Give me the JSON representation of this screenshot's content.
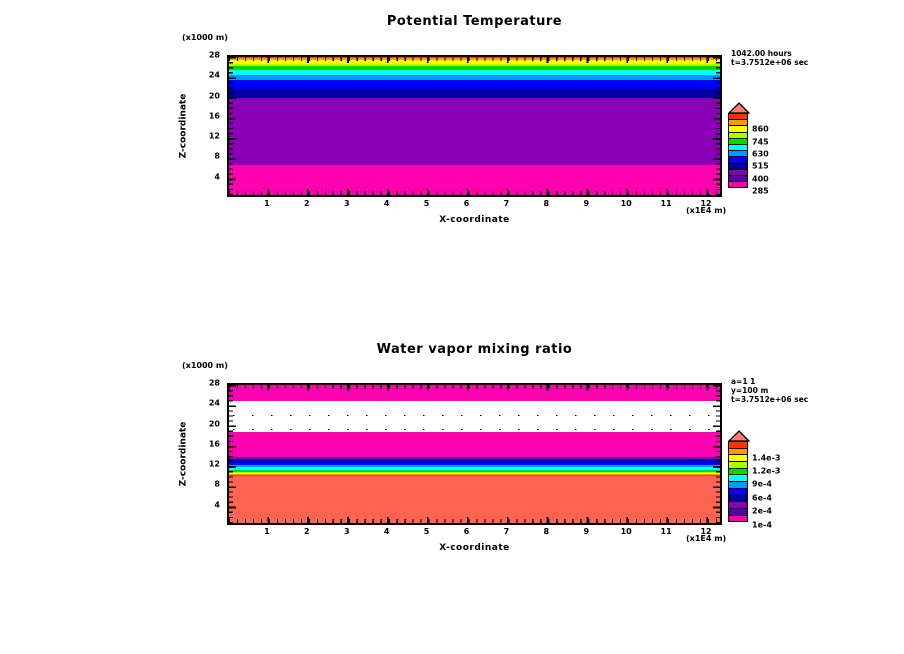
{
  "figure": {
    "background": "#ffffff",
    "shared": {
      "x_axis_label": "X-coordinate",
      "x_unit_label": "(x1E4 m)",
      "y_axis_label": "Z-coordinate",
      "y_unit_label": "(x1000 m)",
      "x_ticks": [
        "1",
        "2",
        "3",
        "4",
        "5",
        "6",
        "7",
        "8",
        "9",
        "10",
        "11",
        "12"
      ],
      "y_ticks": [
        "28",
        "24",
        "20",
        "16",
        "12",
        "8",
        "4"
      ],
      "x_range": [
        0,
        12.4
      ],
      "z_range_km": [
        0,
        28
      ]
    },
    "panels": [
      {
        "id": "potential-temperature",
        "title": "Potential Temperature",
        "annotation_lines": [
          "1042.00 hours",
          "t=3.7512e+06 sec"
        ],
        "colorbar": {
          "cap_color": "#FF7A6E",
          "colors": [
            "#FF3300",
            "#FF9900",
            "#FFFF00",
            "#AAFF00",
            "#00DC00",
            "#00FFFF",
            "#0099FF",
            "#0000FF",
            "#0000A0",
            "#8A00B4",
            "#5A00A8",
            "#FF00B0"
          ],
          "labels": [
            "860",
            "745",
            "630",
            "515",
            "400",
            "285"
          ]
        },
        "bands": [
          {
            "color": "#FF3300",
            "height_pct": 0.7
          },
          {
            "color": "#FF9900",
            "height_pct": 1.76
          },
          {
            "color": "#FFFF00",
            "height_pct": 2.54
          },
          {
            "color": "#AAFF00",
            "height_pct": 1.76
          },
          {
            "color": "#00DC00",
            "height_pct": 2.54
          },
          {
            "color": "#00FFFF",
            "height_pct": 3.59
          },
          {
            "color": "#0099FF",
            "height_pct": 3.52
          },
          {
            "color": "#0000FF",
            "height_pct": 6.48
          },
          {
            "color": "#0000A0",
            "height_pct": 7.11
          },
          {
            "color": "#8A00B4",
            "height_pct": 48.59
          },
          {
            "color": "#FF00B0",
            "height_pct": 21.41
          }
        ],
        "dotted_lines_pct": []
      },
      {
        "id": "water-vapor-mixing-ratio",
        "title": "Water vapor mixing ratio",
        "annotation_lines": [
          "a=1 1",
          "y=100 m",
          "t=3.7512e+06 sec"
        ],
        "colorbar": {
          "cap_color": "#FF7A6E",
          "colors": [
            "#FF3300",
            "#FF9900",
            "#FFFF00",
            "#AAFF00",
            "#00DC00",
            "#00FFFF",
            "#0099FF",
            "#0000FF",
            "#0000A0",
            "#8A00B4",
            "#5A00A8",
            "#FF00B0"
          ],
          "labels": [
            "1.4e-3",
            "1.2e-3",
            "9e-4",
            "6e-4",
            "2e-4",
            "1e-4"
          ]
        },
        "bands": [
          {
            "color": "#FF00B0",
            "height_pct": 11.76
          },
          {
            "color": "#FFFFFF",
            "height_pct": 22.04
          },
          {
            "color": "#FF00B0",
            "height_pct": 18.31
          },
          {
            "color": "#8A00B4",
            "height_pct": 1.83
          },
          {
            "color": "#0000A0",
            "height_pct": 1.76
          },
          {
            "color": "#0000FF",
            "height_pct": 2.18
          },
          {
            "color": "#0099FF",
            "height_pct": 1.76
          },
          {
            "color": "#00FFFF",
            "height_pct": 2.11
          },
          {
            "color": "#00DC00",
            "height_pct": 1.13
          },
          {
            "color": "#AAFF00",
            "height_pct": 0.7
          },
          {
            "color": "#FFFF00",
            "height_pct": 1.06
          },
          {
            "color": "#FF9900",
            "height_pct": 0.56
          },
          {
            "color": "#FF3300",
            "height_pct": 0.49
          },
          {
            "color": "#FF6352",
            "height_pct": 34.31
          }
        ],
        "dotted_lines_pct": [
          21.8,
          31.7
        ]
      }
    ]
  },
  "chart_data": [
    {
      "type": "heatmap",
      "title": "Potential Temperature",
      "xlabel": "X-coordinate",
      "x_units": "x1E4 m",
      "x_range": [
        0,
        12.4
      ],
      "ylabel": "Z-coordinate",
      "y_units": "x1000 m",
      "y_range": [
        0,
        28
      ],
      "time_annotation": [
        "1042.00 hours",
        "t=3.7512e+06 sec"
      ],
      "colorbar_tick_labels": [
        285,
        400,
        515,
        630,
        745,
        860
      ],
      "field_structure": "horizontally uniform layers",
      "layers_bottom_to_top": [
        {
          "z_km": [
            0,
            6.0
          ],
          "color": "#FF00B0",
          "approx_value": "285-400"
        },
        {
          "z_km": [
            6.0,
            19.6
          ],
          "color": "#8A00B4",
          "approx_value": "400-515"
        },
        {
          "z_km": [
            19.6,
            21.6
          ],
          "color": "#0000A0",
          "approx_value": "515"
        },
        {
          "z_km": [
            21.6,
            23.4
          ],
          "color": "#0000FF",
          "approx_value": "560"
        },
        {
          "z_km": [
            23.4,
            24.4
          ],
          "color": "#0099FF",
          "approx_value": "600"
        },
        {
          "z_km": [
            24.4,
            25.4
          ],
          "color": "#00FFFF",
          "approx_value": "630"
        },
        {
          "z_km": [
            25.4,
            26.1
          ],
          "color": "#00DC00",
          "approx_value": "680"
        },
        {
          "z_km": [
            26.1,
            26.6
          ],
          "color": "#AAFF00",
          "approx_value": "720"
        },
        {
          "z_km": [
            26.6,
            27.3
          ],
          "color": "#FFFF00",
          "approx_value": "760"
        },
        {
          "z_km": [
            27.3,
            27.8
          ],
          "color": "#FF9900",
          "approx_value": "810"
        },
        {
          "z_km": [
            27.8,
            28.0
          ],
          "color": "#FF3300",
          "approx_value": "860"
        }
      ],
      "legend_position": "right",
      "grid": false
    },
    {
      "type": "heatmap",
      "title": "Water vapor mixing ratio",
      "xlabel": "X-coordinate",
      "x_units": "x1E4 m",
      "x_range": [
        0,
        12.4
      ],
      "ylabel": "Z-coordinate",
      "y_units": "x1000 m",
      "y_range": [
        0,
        28
      ],
      "slice_annotation": [
        "a=1 1",
        "y=100 m",
        "t=3.7512e+06 sec"
      ],
      "colorbar_tick_labels": [
        "1e-4",
        "2e-4",
        "6e-4",
        "9e-4",
        "1.2e-3",
        "1.4e-3"
      ],
      "field_structure": "horizontally uniform layers",
      "layers_bottom_to_top": [
        {
          "z_km": [
            0,
            9.6
          ],
          "color": "#FF6352",
          "approx_value": ">1.4e-3"
        },
        {
          "z_km": [
            9.6,
            10.4
          ],
          "color": "#FFFF00",
          "approx_value": "1.2e-3"
        },
        {
          "z_km": [
            10.4,
            11.3
          ],
          "color": "#00FFFF",
          "approx_value": "9e-4"
        },
        {
          "z_km": [
            11.3,
            12.4
          ],
          "color": "#0000FF",
          "approx_value": "6e-4"
        },
        {
          "z_km": [
            12.4,
            13.4
          ],
          "color": "#8A00B4",
          "approx_value": "2e-4"
        },
        {
          "z_km": [
            13.4,
            18.9
          ],
          "color": "#FF00B0",
          "approx_value": "1e-4"
        },
        {
          "z_km": [
            18.9,
            24.7
          ],
          "color": "#FFFFFF",
          "approx_value": "<1e-4, two dotted contour lines"
        },
        {
          "z_km": [
            24.7,
            28.0
          ],
          "color": "#FF00B0",
          "approx_value": "1e-4"
        }
      ],
      "legend_position": "right",
      "grid": false
    }
  ]
}
